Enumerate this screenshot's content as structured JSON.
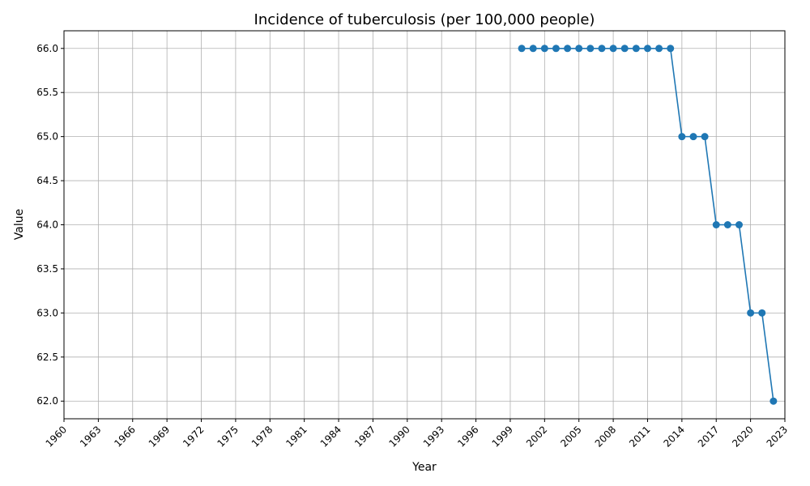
{
  "chart_data": {
    "type": "line",
    "title": "Incidence of tuberculosis (per 100,000 people)",
    "xlabel": "Year",
    "ylabel": "Value",
    "xlim": [
      1960,
      2023
    ],
    "ylim": [
      61.8,
      66.2
    ],
    "x_ticks": [
      1960,
      1963,
      1966,
      1969,
      1972,
      1975,
      1978,
      1981,
      1984,
      1987,
      1990,
      1993,
      1996,
      1999,
      2002,
      2005,
      2008,
      2011,
      2014,
      2017,
      2020,
      2023
    ],
    "y_ticks": [
      "62.0",
      "62.5",
      "63.0",
      "63.5",
      "64.0",
      "64.5",
      "65.0",
      "65.5",
      "66.0"
    ],
    "grid": true,
    "series": [
      {
        "color": "#1f77b4",
        "marker": "circle",
        "x": [
          2000,
          2001,
          2002,
          2003,
          2004,
          2005,
          2006,
          2007,
          2008,
          2009,
          2010,
          2011,
          2012,
          2013,
          2014,
          2015,
          2016,
          2017,
          2018,
          2019,
          2020,
          2021,
          2022
        ],
        "y": [
          66,
          66,
          66,
          66,
          66,
          66,
          66,
          66,
          66,
          66,
          66,
          66,
          66,
          66,
          65,
          65,
          65,
          64,
          64,
          64,
          63,
          63,
          62
        ]
      }
    ]
  }
}
